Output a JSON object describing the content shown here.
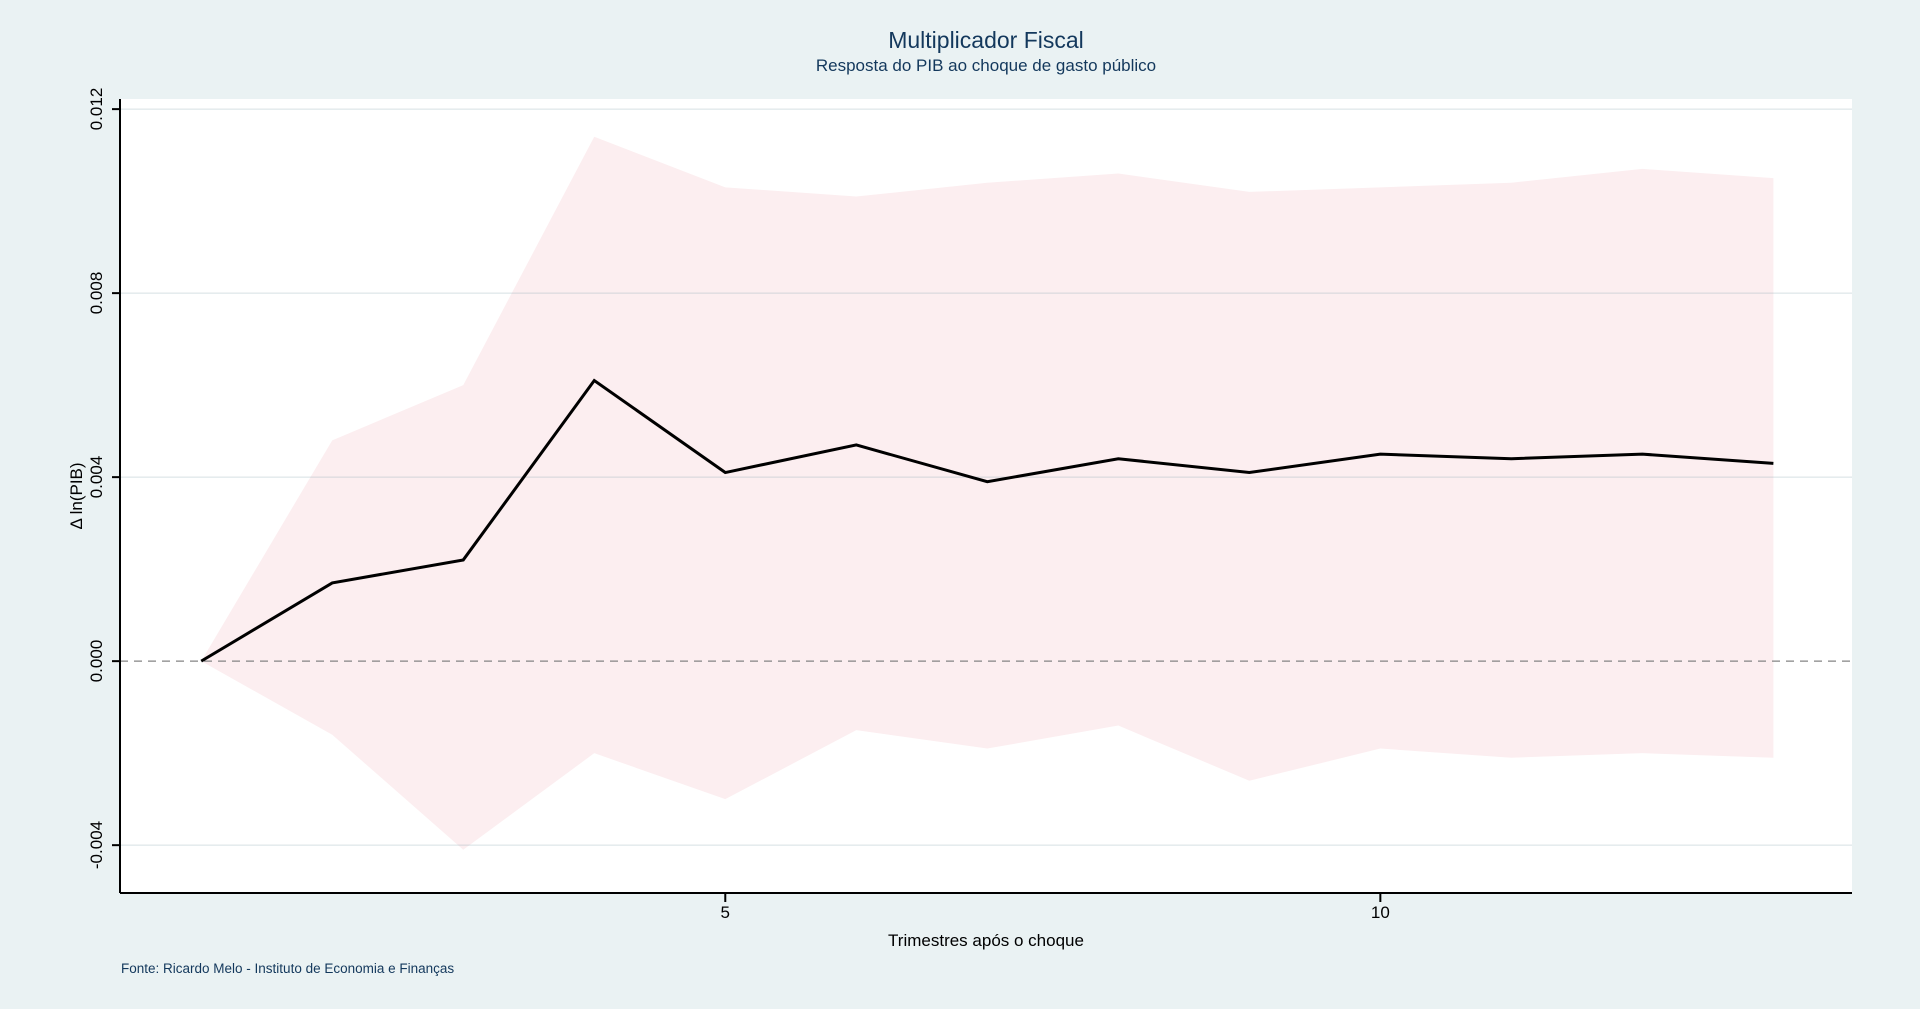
{
  "page": {
    "background_color": "#eaf2f3",
    "note": "Fonte: Ricardo Melo - Instituto de Economia e Finanças"
  },
  "chart_data": {
    "type": "line",
    "title": "Multiplicador Fiscal",
    "subtitle": "Resposta do PIB ao choque de gasto público",
    "xlabel": "Trimestres após o choque",
    "ylabel": "Δ ln(PIB)",
    "x": [
      1,
      2,
      3,
      4,
      5,
      6,
      7,
      8,
      9,
      10,
      11,
      12,
      13
    ],
    "series": [
      {
        "name": "resposta_pib",
        "role": "line",
        "values": [
          0.0,
          0.0017,
          0.0022,
          0.0061,
          0.0041,
          0.0047,
          0.0039,
          0.0044,
          0.0041,
          0.0045,
          0.0044,
          0.0045,
          0.0043
        ]
      },
      {
        "name": "ic_superior",
        "role": "band-upper",
        "values": [
          0.0,
          0.0048,
          0.006,
          0.0114,
          0.0103,
          0.0101,
          0.0104,
          0.0106,
          0.0102,
          0.0103,
          0.0104,
          0.0107,
          0.0105
        ]
      },
      {
        "name": "ic_inferior",
        "role": "band-lower",
        "values": [
          0.0,
          -0.0016,
          -0.0041,
          -0.002,
          -0.003,
          -0.0015,
          -0.0019,
          -0.0014,
          -0.0026,
          -0.0019,
          -0.0021,
          -0.002,
          -0.0021
        ]
      }
    ],
    "x_ticks": [
      {
        "value": 5,
        "label": "5"
      },
      {
        "value": 10,
        "label": "10"
      }
    ],
    "y_ticks": [
      {
        "value": 0.012,
        "label": "0.012"
      },
      {
        "value": 0.008,
        "label": "0.008"
      },
      {
        "value": 0.004,
        "label": "0.004"
      },
      {
        "value": 0.0,
        "label": "0.000"
      },
      {
        "value": -0.004,
        "label": "-0.004"
      }
    ],
    "xlim": [
      0.38,
      13.6
    ],
    "ylim": [
      -0.00504,
      0.01222
    ],
    "zero_line": 0,
    "grid": true,
    "legend_position": "none",
    "colors": {
      "line": "#000000",
      "band": "#fceef0",
      "plot_bg": "#ffffff",
      "outer_bg": "#eaf2f3",
      "grid": "rgba(130,160,170,0.33)",
      "zero_line": "#848484",
      "axis": "#000000",
      "title_text": "#13385c"
    }
  }
}
